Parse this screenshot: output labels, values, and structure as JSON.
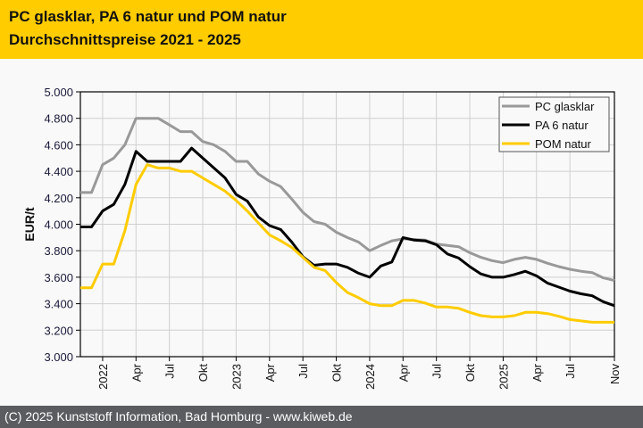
{
  "header": {
    "title_line1": "PC glasklar, PA 6 natur und POM natur",
    "title_line2": "Durchschnittspreise 2021 - 2025",
    "background": "#ffcc00"
  },
  "footer": {
    "text": "(C) 2025 Kunststoff Information, Bad Homburg - www.kiweb.de"
  },
  "chart_data": {
    "type": "line",
    "title": "PC glasklar, PA 6 natur und POM natur Durchschnittspreise 2021 - 2025",
    "ylabel": "EUR/t",
    "xlabel": "",
    "x_start": "2021-11",
    "x_end": "2025-11",
    "x": [
      "2021-11",
      "2021-12",
      "2022-01",
      "2022-02",
      "2022-03",
      "2022-04",
      "2022-05",
      "2022-06",
      "2022-07",
      "2022-08",
      "2022-09",
      "2022-10",
      "2022-11",
      "2022-12",
      "2023-01",
      "2023-02",
      "2023-03",
      "2023-04",
      "2023-05",
      "2023-06",
      "2023-07",
      "2023-08",
      "2023-09",
      "2023-10",
      "2023-11",
      "2023-12",
      "2024-01",
      "2024-02",
      "2024-03",
      "2024-04",
      "2024-05",
      "2024-06",
      "2024-07",
      "2024-08",
      "2024-09",
      "2024-10",
      "2024-11",
      "2024-12",
      "2025-01",
      "2025-02",
      "2025-03",
      "2025-04",
      "2025-05",
      "2025-06",
      "2025-07",
      "2025-08",
      "2025-09",
      "2025-10",
      "2025-11"
    ],
    "ylim": [
      3000,
      5000
    ],
    "yticks": [
      "3.000",
      "3.200",
      "3.400",
      "3.600",
      "3.800",
      "4.000",
      "4.200",
      "4.400",
      "4.600",
      "4.800",
      "5.000"
    ],
    "xticks": [
      {
        "month": "2022-01",
        "label": "2022"
      },
      {
        "month": "2022-04",
        "label": "Apr"
      },
      {
        "month": "2022-07",
        "label": "Jul"
      },
      {
        "month": "2022-10",
        "label": "Okt"
      },
      {
        "month": "2023-01",
        "label": "2023"
      },
      {
        "month": "2023-04",
        "label": "Apr"
      },
      {
        "month": "2023-07",
        "label": "Jul"
      },
      {
        "month": "2023-10",
        "label": "Okt"
      },
      {
        "month": "2024-01",
        "label": "2024"
      },
      {
        "month": "2024-04",
        "label": "Apr"
      },
      {
        "month": "2024-07",
        "label": "Jul"
      },
      {
        "month": "2024-10",
        "label": "Okt"
      },
      {
        "month": "2025-01",
        "label": "2025"
      },
      {
        "month": "2025-04",
        "label": "Apr"
      },
      {
        "month": "2025-07",
        "label": "Jul"
      },
      {
        "month": "2025-11",
        "label": "Nov"
      }
    ],
    "grid": true,
    "legend_position": "top-right",
    "series": [
      {
        "name": "PC glasklar",
        "color": "#999999",
        "values": [
          4240,
          4240,
          4450,
          4500,
          4600,
          4800,
          4800,
          4800,
          4750,
          4700,
          4700,
          4625,
          4600,
          4550,
          4475,
          4475,
          4380,
          4325,
          4285,
          4190,
          4090,
          4020,
          4000,
          3940,
          3900,
          3865,
          3800,
          3840,
          3875,
          3890,
          3885,
          3880,
          3850,
          3840,
          3830,
          3785,
          3750,
          3725,
          3710,
          3735,
          3750,
          3735,
          3705,
          3680,
          3660,
          3645,
          3635,
          3595,
          3575
        ]
      },
      {
        "name": "PA 6 natur",
        "color": "#000000",
        "values": [
          3980,
          3980,
          4100,
          4150,
          4300,
          4550,
          4475,
          4475,
          4475,
          4475,
          4575,
          4500,
          4425,
          4350,
          4225,
          4175,
          4055,
          3990,
          3960,
          3865,
          3755,
          3690,
          3700,
          3700,
          3675,
          3630,
          3600,
          3685,
          3715,
          3900,
          3880,
          3875,
          3845,
          3775,
          3745,
          3680,
          3625,
          3600,
          3600,
          3620,
          3645,
          3610,
          3555,
          3525,
          3495,
          3475,
          3460,
          3415,
          3385
        ]
      },
      {
        "name": "POM natur",
        "color": "#ffcc00",
        "values": [
          3520,
          3520,
          3700,
          3700,
          3950,
          4300,
          4450,
          4425,
          4425,
          4400,
          4400,
          4350,
          4300,
          4250,
          4180,
          4100,
          4010,
          3920,
          3875,
          3825,
          3750,
          3675,
          3650,
          3560,
          3485,
          3445,
          3400,
          3385,
          3385,
          3425,
          3425,
          3405,
          3375,
          3375,
          3365,
          3335,
          3310,
          3300,
          3300,
          3310,
          3335,
          3335,
          3325,
          3305,
          3280,
          3270,
          3260,
          3260,
          3260
        ]
      }
    ]
  }
}
